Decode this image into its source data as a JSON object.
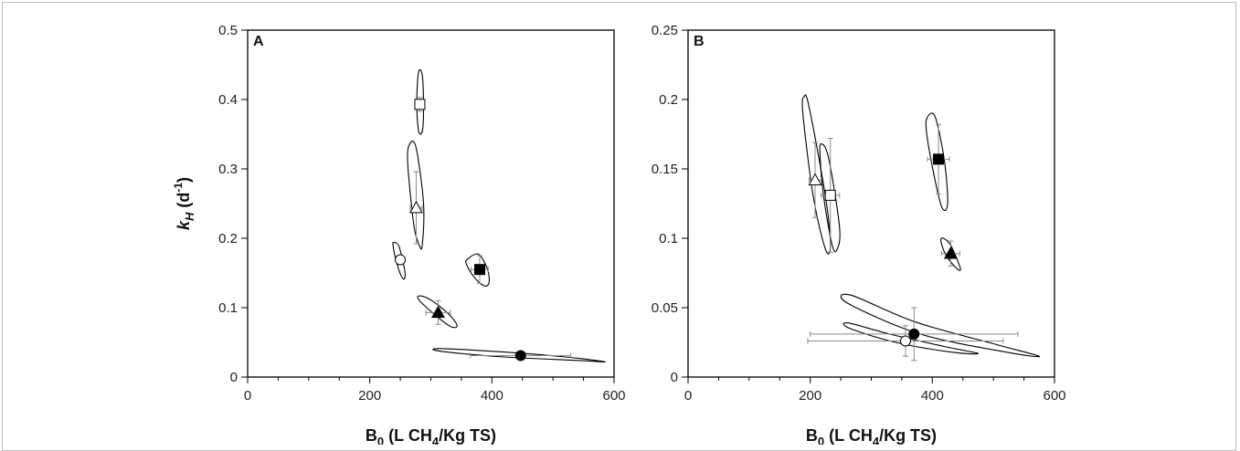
{
  "chart_data": [
    {
      "type": "scatter",
      "panel_label": "A",
      "xlabel": {
        "main": "B",
        "sub0": "0",
        "mid": " (L CH",
        "sub1": "4",
        "tail": "/Kg TS)"
      },
      "ylabel": {
        "main": "k",
        "sub0": "H",
        "mid": " (d",
        "sup": "-1",
        "tail": ")"
      },
      "xlim": [
        0,
        600
      ],
      "ylim": [
        0,
        0.5
      ],
      "xticks": [
        "0",
        "200",
        "400",
        "600"
      ],
      "yticks": [
        "0",
        "0.1",
        "0.2",
        "0.3",
        "0.4",
        "0.5"
      ],
      "grid": false,
      "points": [
        {
          "marker": "open-square",
          "x": 282,
          "y": 0.393,
          "xerr": 6,
          "yerr": 0.01
        },
        {
          "marker": "open-triangle",
          "x": 276,
          "y": 0.244,
          "xerr": 10,
          "yerr": 0.052
        },
        {
          "marker": "open-circle",
          "x": 250,
          "y": 0.169,
          "xerr": 4,
          "yerr": 0.006
        },
        {
          "marker": "filled-square",
          "x": 380,
          "y": 0.155,
          "xerr": 14,
          "yerr": 0.02
        },
        {
          "marker": "filled-triangle",
          "x": 312,
          "y": 0.093,
          "xerr": 20,
          "yerr": 0.017
        },
        {
          "marker": "filled-circle",
          "x": 447,
          "y": 0.031,
          "xerr": 82,
          "yerr": 0.003
        }
      ],
      "ellipses": [
        {
          "cx": 282,
          "cy": 0.395,
          "path": [
            [
              280,
              0.44
            ],
            [
              286,
              0.435
            ],
            [
              288,
              0.395
            ],
            [
              287,
              0.36
            ],
            [
              283,
              0.35
            ],
            [
              279,
              0.36
            ],
            [
              277,
              0.4
            ]
          ]
        },
        {
          "cx": 275,
          "cy": 0.27,
          "path": [
            [
              266,
              0.337
            ],
            [
              276,
              0.33
            ],
            [
              288,
              0.25
            ],
            [
              286,
              0.19
            ],
            [
              281,
              0.19
            ],
            [
              272,
              0.22
            ],
            [
              262,
              0.31
            ]
          ]
        },
        {
          "cx": 248,
          "cy": 0.17,
          "path": [
            [
              240,
              0.194
            ],
            [
              248,
              0.188
            ],
            [
              257,
              0.155
            ],
            [
              257,
              0.142
            ],
            [
              252,
              0.145
            ],
            [
              244,
              0.165
            ],
            [
              238,
              0.19
            ]
          ]
        },
        {
          "cx": 380,
          "cy": 0.155,
          "path": [
            [
              360,
              0.17
            ],
            [
              378,
              0.177
            ],
            [
              393,
              0.155
            ],
            [
              395,
              0.135
            ],
            [
              386,
              0.132
            ],
            [
              370,
              0.145
            ],
            [
              358,
              0.163
            ]
          ]
        },
        {
          "cx": 315,
          "cy": 0.095,
          "path": [
            [
              283,
              0.117
            ],
            [
              302,
              0.11
            ],
            [
              330,
              0.09
            ],
            [
              343,
              0.074
            ],
            [
              332,
              0.073
            ],
            [
              305,
              0.091
            ],
            [
              280,
              0.112
            ]
          ]
        },
        {
          "cx": 450,
          "cy": 0.03,
          "path": [
            [
              315,
              0.041
            ],
            [
              420,
              0.036
            ],
            [
              520,
              0.029
            ],
            [
              585,
              0.022
            ],
            [
              540,
              0.024
            ],
            [
              420,
              0.029
            ],
            [
              318,
              0.037
            ]
          ]
        }
      ]
    },
    {
      "type": "scatter",
      "panel_label": "B",
      "xlabel": {
        "main": "B",
        "sub0": "0",
        "mid": " (L CH",
        "sub1": "4",
        "tail": "/Kg TS)"
      },
      "ylabel": null,
      "xlim": [
        0,
        600
      ],
      "ylim": [
        0,
        0.25
      ],
      "xticks": [
        "0",
        "200",
        "400",
        "600"
      ],
      "yticks": [
        "0",
        "0.05",
        "0.1",
        "0.15",
        "0.2",
        "0.25"
      ],
      "grid": false,
      "points": [
        {
          "marker": "filled-square",
          "x": 410,
          "y": 0.157,
          "xerr": 18,
          "yerr": 0.025
        },
        {
          "marker": "open-triangle",
          "x": 208,
          "y": 0.142,
          "xerr": 10,
          "yerr": 0.027
        },
        {
          "marker": "open-square",
          "x": 233,
          "y": 0.131,
          "xerr": 15,
          "yerr": 0.041
        },
        {
          "marker": "filled-triangle",
          "x": 430,
          "y": 0.089,
          "xerr": 15,
          "yerr": 0.009
        },
        {
          "marker": "filled-circle",
          "x": 370,
          "y": 0.031,
          "xerr": 170,
          "yerr": 0.019
        },
        {
          "marker": "open-circle",
          "x": 356,
          "y": 0.026,
          "xerr": 160,
          "yerr": 0.011
        }
      ],
      "ellipses": [
        {
          "cx": 410,
          "cy": 0.158,
          "path": [
            [
              393,
              0.188
            ],
            [
              405,
              0.187
            ],
            [
              420,
              0.155
            ],
            [
              425,
              0.125
            ],
            [
              416,
              0.122
            ],
            [
              403,
              0.145
            ],
            [
              390,
              0.178
            ]
          ]
        },
        {
          "cx": 210,
          "cy": 0.15,
          "path": [
            [
              190,
              0.202
            ],
            [
              198,
              0.195
            ],
            [
              225,
              0.13
            ],
            [
              233,
              0.095
            ],
            [
              225,
              0.092
            ],
            [
              205,
              0.13
            ],
            [
              188,
              0.19
            ]
          ]
        },
        {
          "cx": 232,
          "cy": 0.135,
          "path": [
            [
              218,
              0.168
            ],
            [
              230,
              0.158
            ],
            [
              248,
              0.108
            ],
            [
              244,
              0.092
            ],
            [
              236,
              0.095
            ],
            [
              222,
              0.13
            ],
            [
              216,
              0.16
            ]
          ]
        },
        {
          "cx": 430,
          "cy": 0.09,
          "path": [
            [
              418,
              0.1
            ],
            [
              430,
              0.095
            ],
            [
              443,
              0.082
            ],
            [
              446,
              0.077
            ],
            [
              438,
              0.079
            ],
            [
              422,
              0.088
            ],
            [
              414,
              0.098
            ]
          ]
        },
        {
          "cx": 380,
          "cy": 0.035,
          "path": [
            [
              267,
              0.059
            ],
            [
              370,
              0.04
            ],
            [
              500,
              0.024
            ],
            [
              575,
              0.015
            ],
            [
              520,
              0.018
            ],
            [
              380,
              0.031
            ],
            [
              262,
              0.053
            ]
          ]
        },
        {
          "cx": 360,
          "cy": 0.027,
          "path": [
            [
              262,
              0.039
            ],
            [
              330,
              0.031
            ],
            [
              420,
              0.022
            ],
            [
              475,
              0.017
            ],
            [
              430,
              0.018
            ],
            [
              340,
              0.025
            ],
            [
              265,
              0.035
            ]
          ]
        }
      ]
    }
  ]
}
